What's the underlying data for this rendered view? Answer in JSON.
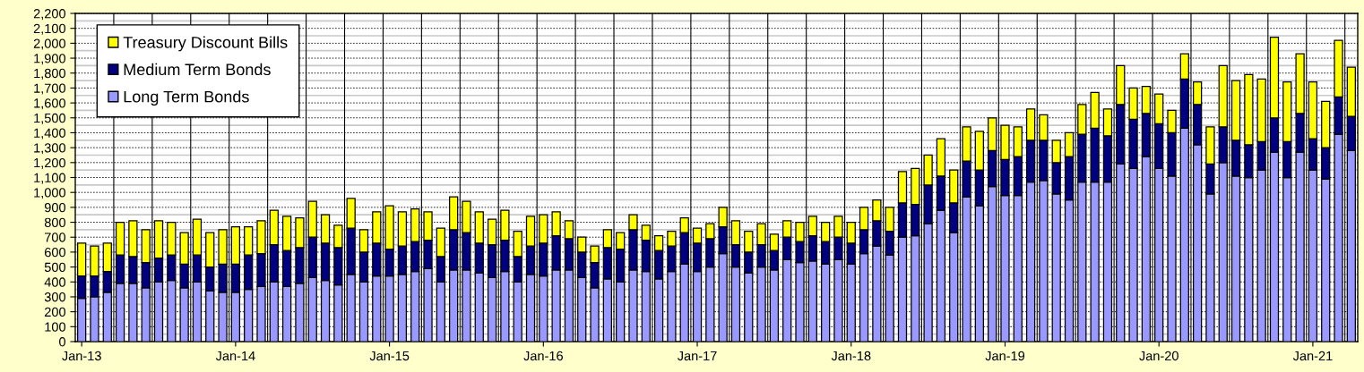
{
  "chart_data": {
    "type": "bar",
    "stacked": true,
    "categories": [
      "Jan-13",
      null,
      null,
      null,
      null,
      null,
      null,
      null,
      null,
      null,
      null,
      null,
      "Jan-14",
      null,
      null,
      null,
      null,
      null,
      null,
      null,
      null,
      null,
      null,
      null,
      "Jan-15",
      null,
      null,
      null,
      null,
      null,
      null,
      null,
      null,
      null,
      null,
      null,
      "Jan-16",
      null,
      null,
      null,
      null,
      null,
      null,
      null,
      null,
      null,
      null,
      null,
      "Jan-17",
      null,
      null,
      null,
      null,
      null,
      null,
      null,
      null,
      null,
      null,
      null,
      "Jan-18",
      null,
      null,
      null,
      null,
      null,
      null,
      null,
      null,
      null,
      null,
      null,
      "Jan-19",
      null,
      null,
      null,
      null,
      null,
      null,
      null,
      null,
      null,
      null,
      null,
      "Jan-20",
      null,
      null,
      null,
      null,
      null,
      null,
      null,
      null,
      null,
      null,
      null,
      "Jan-21",
      null,
      null,
      null
    ],
    "series": [
      {
        "name": "Long Term Bonds",
        "color": "#9999ff",
        "values": [
          290,
          300,
          330,
          390,
          390,
          360,
          400,
          410,
          360,
          400,
          340,
          330,
          330,
          350,
          370,
          400,
          370,
          390,
          430,
          410,
          380,
          450,
          400,
          440,
          440,
          450,
          470,
          490,
          400,
          480,
          480,
          460,
          430,
          470,
          400,
          450,
          440,
          480,
          480,
          430,
          360,
          420,
          400,
          480,
          470,
          420,
          470,
          520,
          470,
          500,
          590,
          500,
          460,
          500,
          480,
          550,
          530,
          540,
          520,
          550,
          520,
          590,
          640,
          580,
          700,
          710,
          790,
          880,
          730,
          970,
          910,
          1040,
          980,
          980,
          1070,
          1080,
          990,
          950,
          1070,
          1070,
          1070,
          1190,
          1160,
          1240,
          1160,
          1110,
          1430,
          1320,
          990,
          1200,
          1110,
          1100,
          1150,
          1270,
          1100,
          1270,
          1150,
          1090,
          1390,
          1280
        ]
      },
      {
        "name": "Medium Term Bonds",
        "color": "#000080",
        "values": [
          150,
          140,
          140,
          190,
          180,
          170,
          160,
          170,
          160,
          180,
          160,
          190,
          190,
          230,
          220,
          250,
          240,
          240,
          270,
          250,
          250,
          310,
          200,
          220,
          180,
          190,
          200,
          190,
          170,
          270,
          250,
          200,
          220,
          210,
          170,
          190,
          220,
          230,
          210,
          170,
          170,
          210,
          220,
          270,
          210,
          190,
          170,
          210,
          190,
          190,
          180,
          150,
          140,
          150,
          130,
          150,
          140,
          170,
          150,
          150,
          140,
          160,
          170,
          160,
          230,
          210,
          260,
          230,
          200,
          240,
          240,
          240,
          240,
          260,
          280,
          270,
          210,
          290,
          320,
          360,
          310,
          400,
          330,
          290,
          300,
          290,
          330,
          270,
          200,
          240,
          240,
          220,
          190,
          230,
          240,
          260,
          210,
          210,
          250,
          230
        ]
      },
      {
        "name": "Treasury Discount Bills",
        "color": "#ffff00",
        "values": [
          220,
          200,
          190,
          220,
          240,
          220,
          250,
          220,
          210,
          240,
          230,
          230,
          250,
          190,
          220,
          230,
          230,
          200,
          240,
          190,
          150,
          200,
          150,
          210,
          290,
          230,
          220,
          190,
          190,
          220,
          210,
          210,
          170,
          200,
          170,
          200,
          190,
          160,
          120,
          100,
          110,
          120,
          110,
          100,
          100,
          100,
          100,
          100,
          100,
          100,
          130,
          160,
          140,
          140,
          110,
          110,
          130,
          130,
          130,
          140,
          140,
          150,
          140,
          160,
          210,
          240,
          200,
          250,
          220,
          230,
          260,
          220,
          230,
          200,
          210,
          170,
          150,
          160,
          200,
          240,
          180,
          260,
          210,
          180,
          200,
          150,
          170,
          150,
          250,
          410,
          400,
          470,
          420,
          540,
          400,
          400,
          380,
          310,
          380,
          330
        ]
      }
    ],
    "ylim": [
      0,
      2200
    ],
    "yticks": [
      0,
      100,
      200,
      300,
      400,
      500,
      600,
      700,
      800,
      900,
      {
        "value": 1000,
        "label": "1,000"
      },
      {
        "value": 1100,
        "label": "1,100"
      },
      {
        "value": 1200,
        "label": "1,200"
      },
      {
        "value": 1300,
        "label": "1,300"
      },
      {
        "value": 1400,
        "label": "1,400"
      },
      {
        "value": 1500,
        "label": "1,500"
      },
      {
        "value": 1600,
        "label": "1,600"
      },
      {
        "value": 1700,
        "label": "1,700"
      },
      {
        "value": 1800,
        "label": "1,800"
      },
      {
        "value": 1900,
        "label": "1,900"
      },
      {
        "value": 2000,
        "label": "2,000"
      },
      {
        "value": 2100,
        "label": "2,100"
      },
      {
        "value": 2200,
        "label": "2,200"
      }
    ],
    "grid": true,
    "legend": "top left"
  }
}
